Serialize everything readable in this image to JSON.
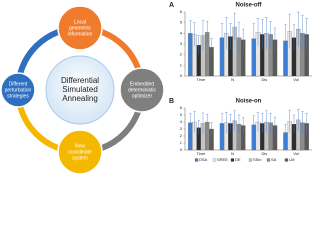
{
  "diagram": {
    "center": [
      "Differential",
      "Simulated",
      "Annealing"
    ],
    "nodes": [
      {
        "lines": [
          "Local",
          "geometric",
          "information"
        ]
      },
      {
        "lines": [
          "Embedded",
          "deterministic",
          "optimizer"
        ]
      },
      {
        "lines": [
          "New",
          "coordinate",
          "system"
        ]
      },
      {
        "lines": [
          "Different",
          "perturbation",
          "strategies"
        ]
      }
    ]
  },
  "chart_data": [
    {
      "type": "bar",
      "panel": "A",
      "title": "Noise-off",
      "legend": false,
      "categories": [
        "Time",
        "N",
        "Dis",
        "Vol"
      ],
      "series": [
        {
          "name": "DSA",
          "color": "#3d7fd6",
          "values": [
            4.0,
            3.6,
            3.5,
            3.3
          ],
          "errors": [
            1.2,
            1.3,
            1.4,
            1.5
          ]
        },
        {
          "name": "SREE",
          "color": "#e6e6e6",
          "values": [
            3.9,
            4.0,
            4.1,
            4.2
          ],
          "errors": [
            1.1,
            1.5,
            1.3,
            1.6
          ]
        },
        {
          "name": "DE",
          "color": "#2e2e2e",
          "values": [
            2.9,
            3.7,
            3.9,
            3.6
          ],
          "errors": [
            0.9,
            1.2,
            1.4,
            1.2
          ]
        },
        {
          "name": "SSin",
          "color": "#c4c4c4",
          "values": [
            3.8,
            4.6,
            4.0,
            4.4
          ],
          "errors": [
            1.4,
            1.3,
            1.5,
            1.6
          ]
        },
        {
          "name": "SA",
          "color": "#8c8c8c",
          "values": [
            4.1,
            3.6,
            3.9,
            4.0
          ],
          "errors": [
            1.0,
            1.4,
            1.2,
            1.7
          ]
        },
        {
          "name": "LM",
          "color": "#5a5a5a",
          "values": [
            2.7,
            3.4,
            3.4,
            3.9
          ],
          "errors": [
            0.8,
            1.0,
            1.1,
            1.5
          ]
        }
      ],
      "ylim": [
        0,
        6
      ],
      "yticks": [
        0,
        1,
        2,
        3,
        4,
        5,
        6
      ]
    },
    {
      "type": "bar",
      "panel": "B",
      "title": "Noise-on",
      "legend": true,
      "categories": [
        "Time",
        "N",
        "Dis",
        "Vol"
      ],
      "series": [
        {
          "name": "DSA",
          "color": "#3d7fd6",
          "values": [
            3.9,
            3.8,
            3.6,
            2.5
          ],
          "errors": [
            1.3,
            1.4,
            1.3,
            1.2
          ]
        },
        {
          "name": "SREE",
          "color": "#e6e6e6",
          "values": [
            4.0,
            3.9,
            4.0,
            4.1
          ],
          "errors": [
            1.5,
            1.5,
            1.4,
            1.6
          ]
        },
        {
          "name": "DE",
          "color": "#2e2e2e",
          "values": [
            3.2,
            3.8,
            3.8,
            3.7
          ],
          "errors": [
            1.0,
            1.3,
            1.4,
            1.3
          ]
        },
        {
          "name": "SSin",
          "color": "#c4c4c4",
          "values": [
            3.8,
            4.2,
            4.0,
            4.3
          ],
          "errors": [
            1.5,
            1.4,
            1.6,
            1.5
          ]
        },
        {
          "name": "SA",
          "color": "#8c8c8c",
          "values": [
            4.0,
            3.7,
            3.9,
            3.9
          ],
          "errors": [
            1.1,
            1.3,
            1.3,
            1.6
          ]
        },
        {
          "name": "LM",
          "color": "#5a5a5a",
          "values": [
            3.0,
            3.5,
            3.5,
            3.8
          ],
          "errors": [
            0.9,
            1.1,
            1.2,
            1.4
          ]
        }
      ],
      "ylim": [
        0,
        6
      ],
      "yticks": [
        0,
        1,
        2,
        3,
        4,
        5,
        6
      ]
    }
  ]
}
